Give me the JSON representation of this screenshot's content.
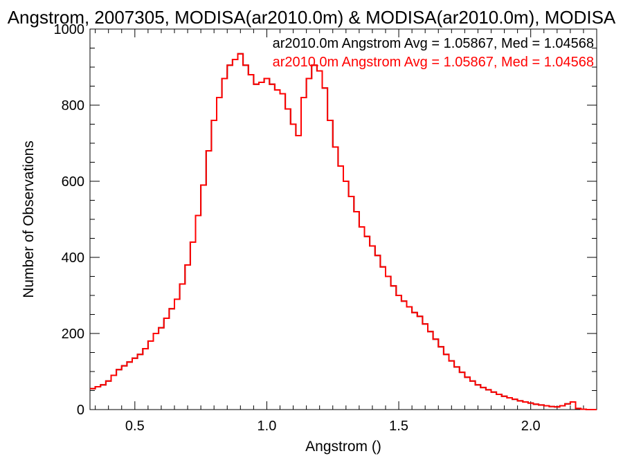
{
  "chart_data": {
    "type": "line",
    "title": "Angstrom, 2007305, MODISA(ar2010.0m) & MODISA(ar2010.0m), MODISA",
    "xlabel": "Angstrom ()",
    "ylabel": "Number of Observations",
    "xlim": [
      0.33,
      2.25
    ],
    "ylim": [
      0,
      1000
    ],
    "x_ticks": [
      0.5,
      1.0,
      1.5,
      2.0
    ],
    "x_tick_labels": [
      "0.5",
      "1.0",
      "1.5",
      "2.0"
    ],
    "y_ticks": [
      0,
      200,
      400,
      600,
      800,
      1000
    ],
    "y_tick_labels": [
      "0",
      "200",
      "400",
      "600",
      "800",
      "1000"
    ],
    "grid": false,
    "legend_position": "top-right",
    "step": true,
    "x": [
      0.33,
      0.35,
      0.37,
      0.39,
      0.41,
      0.43,
      0.45,
      0.47,
      0.49,
      0.51,
      0.53,
      0.55,
      0.57,
      0.59,
      0.61,
      0.63,
      0.65,
      0.67,
      0.69,
      0.71,
      0.73,
      0.75,
      0.77,
      0.79,
      0.81,
      0.83,
      0.85,
      0.87,
      0.89,
      0.91,
      0.93,
      0.95,
      0.97,
      0.99,
      1.01,
      1.03,
      1.05,
      1.07,
      1.09,
      1.11,
      1.13,
      1.15,
      1.17,
      1.19,
      1.21,
      1.23,
      1.25,
      1.27,
      1.29,
      1.31,
      1.33,
      1.35,
      1.37,
      1.39,
      1.41,
      1.43,
      1.45,
      1.47,
      1.49,
      1.51,
      1.53,
      1.55,
      1.57,
      1.59,
      1.61,
      1.63,
      1.65,
      1.67,
      1.69,
      1.71,
      1.73,
      1.75,
      1.77,
      1.79,
      1.81,
      1.83,
      1.85,
      1.87,
      1.89,
      1.91,
      1.93,
      1.95,
      1.97,
      1.99,
      2.01,
      2.03,
      2.05,
      2.07,
      2.09,
      2.11,
      2.13,
      2.15,
      2.17,
      2.19,
      2.21,
      2.23
    ],
    "series": [
      {
        "name": "ar2010.0m Angstrom Avg = 1.05867, Med = 1.04568",
        "color": "#000000",
        "values": [
          55,
          60,
          65,
          75,
          90,
          105,
          115,
          125,
          135,
          145,
          160,
          180,
          200,
          215,
          240,
          265,
          290,
          330,
          380,
          440,
          510,
          590,
          680,
          760,
          820,
          870,
          905,
          920,
          935,
          905,
          880,
          855,
          860,
          870,
          855,
          840,
          830,
          790,
          750,
          720,
          820,
          870,
          905,
          890,
          845,
          760,
          690,
          640,
          600,
          560,
          520,
          480,
          455,
          430,
          405,
          375,
          350,
          325,
          300,
          285,
          270,
          255,
          245,
          225,
          205,
          185,
          165,
          145,
          128,
          112,
          98,
          85,
          75,
          65,
          58,
          52,
          46,
          40,
          35,
          31,
          27,
          23,
          20,
          17,
          14,
          12,
          10,
          8,
          7,
          10,
          15,
          20,
          3,
          1,
          0,
          0
        ]
      },
      {
        "name": "ar2010.0m Angstrom Avg = 1.05867, Med = 1.04568",
        "color": "#ff0000",
        "values": [
          55,
          60,
          65,
          75,
          90,
          105,
          115,
          125,
          135,
          145,
          160,
          180,
          200,
          215,
          240,
          265,
          290,
          330,
          380,
          440,
          510,
          590,
          680,
          760,
          820,
          870,
          905,
          920,
          935,
          905,
          880,
          855,
          860,
          870,
          855,
          840,
          830,
          790,
          750,
          720,
          820,
          870,
          905,
          890,
          845,
          760,
          690,
          640,
          600,
          560,
          520,
          480,
          455,
          430,
          405,
          375,
          350,
          325,
          300,
          285,
          270,
          255,
          245,
          225,
          205,
          185,
          165,
          145,
          128,
          112,
          98,
          85,
          75,
          65,
          58,
          52,
          46,
          40,
          35,
          31,
          27,
          23,
          20,
          17,
          14,
          12,
          10,
          8,
          7,
          10,
          15,
          20,
          3,
          1,
          0,
          0
        ]
      }
    ]
  }
}
